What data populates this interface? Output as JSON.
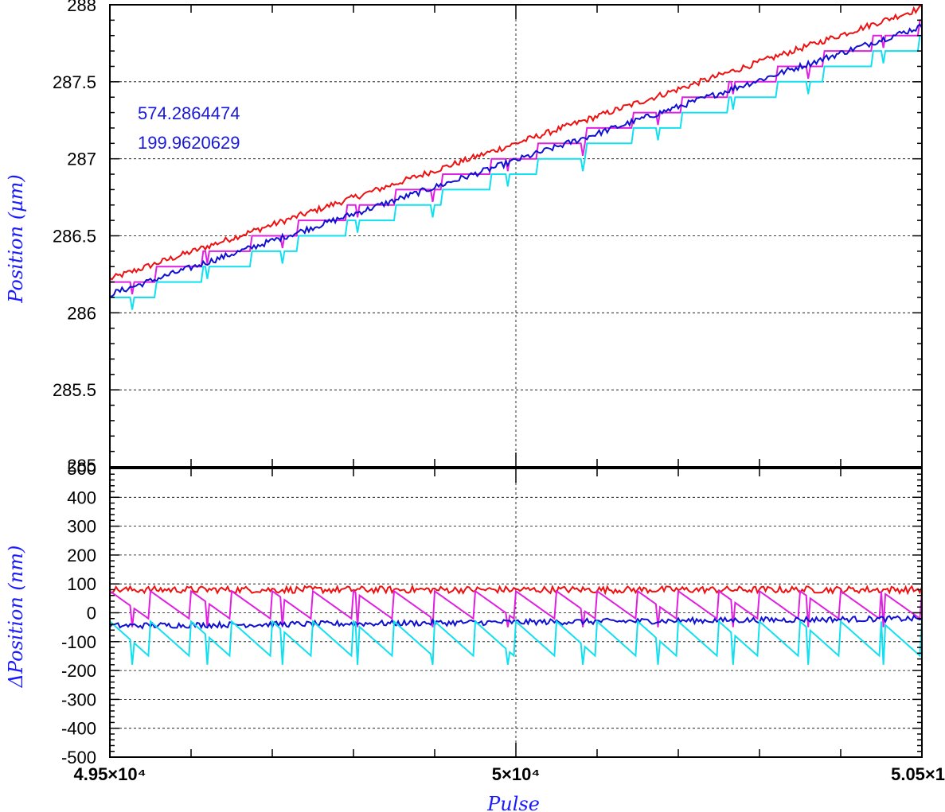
{
  "colors": {
    "red": "#ee1111",
    "magenta": "#e020e0",
    "blue": "#1010d0",
    "cyan": "#10e0f0"
  },
  "chart_data": [
    {
      "type": "line",
      "name": "top-panel",
      "ylabel": "Position (µm)",
      "xlim": [
        49500,
        50500
      ],
      "ylim": [
        285,
        288
      ],
      "yticks": [
        285.5,
        286,
        286.5,
        287,
        287.5,
        288
      ],
      "ytick_labels": [
        "285.5",
        "286",
        "286.5",
        "287",
        "287.5",
        "288"
      ],
      "grid": true,
      "annotations": [
        "574.2864474",
        "199.9620629"
      ],
      "series": [
        {
          "color": "red",
          "style": "noisy",
          "x": [
            49500,
            50500
          ],
          "y": [
            286.22,
            287.98
          ]
        },
        {
          "color": "magenta",
          "style": "staircase",
          "x": [
            49500,
            50500
          ],
          "y": [
            286.2,
            287.9
          ]
        },
        {
          "color": "blue",
          "style": "noisy",
          "x": [
            49500,
            50500
          ],
          "y": [
            286.12,
            287.86
          ]
        },
        {
          "color": "cyan",
          "style": "staircase",
          "x": [
            49500,
            50500
          ],
          "y": [
            286.1,
            287.8
          ]
        }
      ]
    },
    {
      "type": "line",
      "name": "bottom-panel",
      "xlabel": "Pulse",
      "ylabel": "ΔPosition (nm)",
      "xlim": [
        49500,
        50500
      ],
      "ylim": [
        -500,
        500
      ],
      "yticks": [
        -500,
        -400,
        -300,
        -200,
        -100,
        0,
        100,
        200,
        300,
        400,
        500
      ],
      "ytick_labels": [
        "-500",
        "-400",
        "-300",
        "-200",
        "-100",
        "0",
        "100",
        "200",
        "300",
        "400",
        "500"
      ],
      "xticks": [
        49500,
        50000,
        50500
      ],
      "xtick_labels": [
        "4.95×10⁴",
        "5×10⁴",
        "5.05×1"
      ],
      "grid": true,
      "series": [
        {
          "color": "red",
          "style": "noisy",
          "mean": 80,
          "noise": 12
        },
        {
          "color": "magenta",
          "style": "sawtooth",
          "high": 75,
          "low": -25
        },
        {
          "color": "blue",
          "style": "noisy",
          "mean_start": -45,
          "mean_end": -20,
          "noise": 10
        },
        {
          "color": "cyan",
          "style": "sawtooth",
          "high": -30,
          "low": -155
        }
      ]
    }
  ]
}
